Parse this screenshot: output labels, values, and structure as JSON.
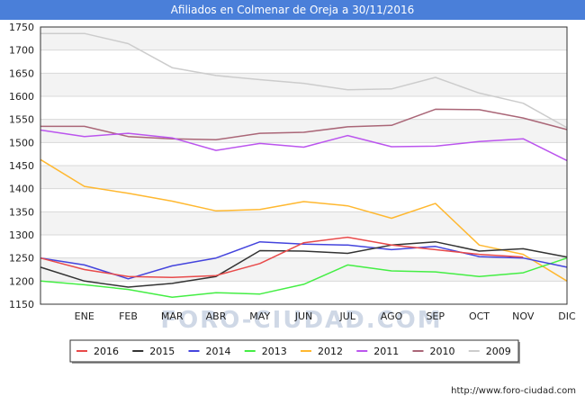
{
  "header": {
    "title": "Afiliados en Colmenar de Oreja a 30/11/2016"
  },
  "footer": {
    "url": "http://www.foro-ciudad.com"
  },
  "watermark": {
    "text": "FORO-CIUDAD.COM"
  },
  "chart_data": {
    "type": "line",
    "title": "Afiliados en Colmenar de Oreja a 30/11/2016",
    "xlabel": "",
    "ylabel": "",
    "categories": [
      "",
      "ENE",
      "FEB",
      "MAR",
      "ABR",
      "MAY",
      "JUN",
      "JUL",
      "AGO",
      "SEP",
      "OCT",
      "NOV",
      "DIC"
    ],
    "ylim": [
      1150,
      1750
    ],
    "yticks": [
      1150,
      1200,
      1250,
      1300,
      1350,
      1400,
      1450,
      1500,
      1550,
      1600,
      1650,
      1700,
      1750
    ],
    "grid": true,
    "legend_position": "bottom",
    "series": [
      {
        "name": "2016",
        "color": "#e84a4a",
        "values": [
          1250,
          1225,
          1210,
          1208,
          1212,
          1238,
          1283,
          1295,
          1278,
          1268,
          1258,
          1252,
          null
        ]
      },
      {
        "name": "2015",
        "color": "#333333",
        "values": [
          1230,
          1200,
          1187,
          1195,
          1210,
          1266,
          1265,
          1260,
          1278,
          1285,
          1265,
          1270,
          1252
        ]
      },
      {
        "name": "2014",
        "color": "#4444dd",
        "values": [
          1250,
          1235,
          1205,
          1233,
          1250,
          1285,
          1280,
          1278,
          1268,
          1275,
          1253,
          1250,
          1230
        ]
      },
      {
        "name": "2013",
        "color": "#44ee44",
        "values": [
          1200,
          1192,
          1182,
          1165,
          1175,
          1172,
          1193,
          1235,
          1222,
          1220,
          1210,
          1218,
          1250
        ]
      },
      {
        "name": "2012",
        "color": "#ffb830",
        "values": [
          1463,
          1405,
          1390,
          1373,
          1352,
          1355,
          1372,
          1363,
          1336,
          1368,
          1278,
          1258,
          1200
        ]
      },
      {
        "name": "2011",
        "color": "#bb55ee",
        "values": [
          1527,
          1513,
          1520,
          1510,
          1483,
          1498,
          1490,
          1515,
          1491,
          1492,
          1502,
          1508,
          1461
        ]
      },
      {
        "name": "2010",
        "color": "#aa6677",
        "values": [
          1535,
          1535,
          1513,
          1508,
          1506,
          1520,
          1522,
          1534,
          1537,
          1572,
          1571,
          1553,
          1528
        ]
      },
      {
        "name": "2009",
        "color": "#cccccc",
        "values": [
          1736,
          1736,
          1714,
          1662,
          1645,
          1636,
          1628,
          1614,
          1616,
          1641,
          1607,
          1585,
          1532
        ]
      }
    ]
  }
}
